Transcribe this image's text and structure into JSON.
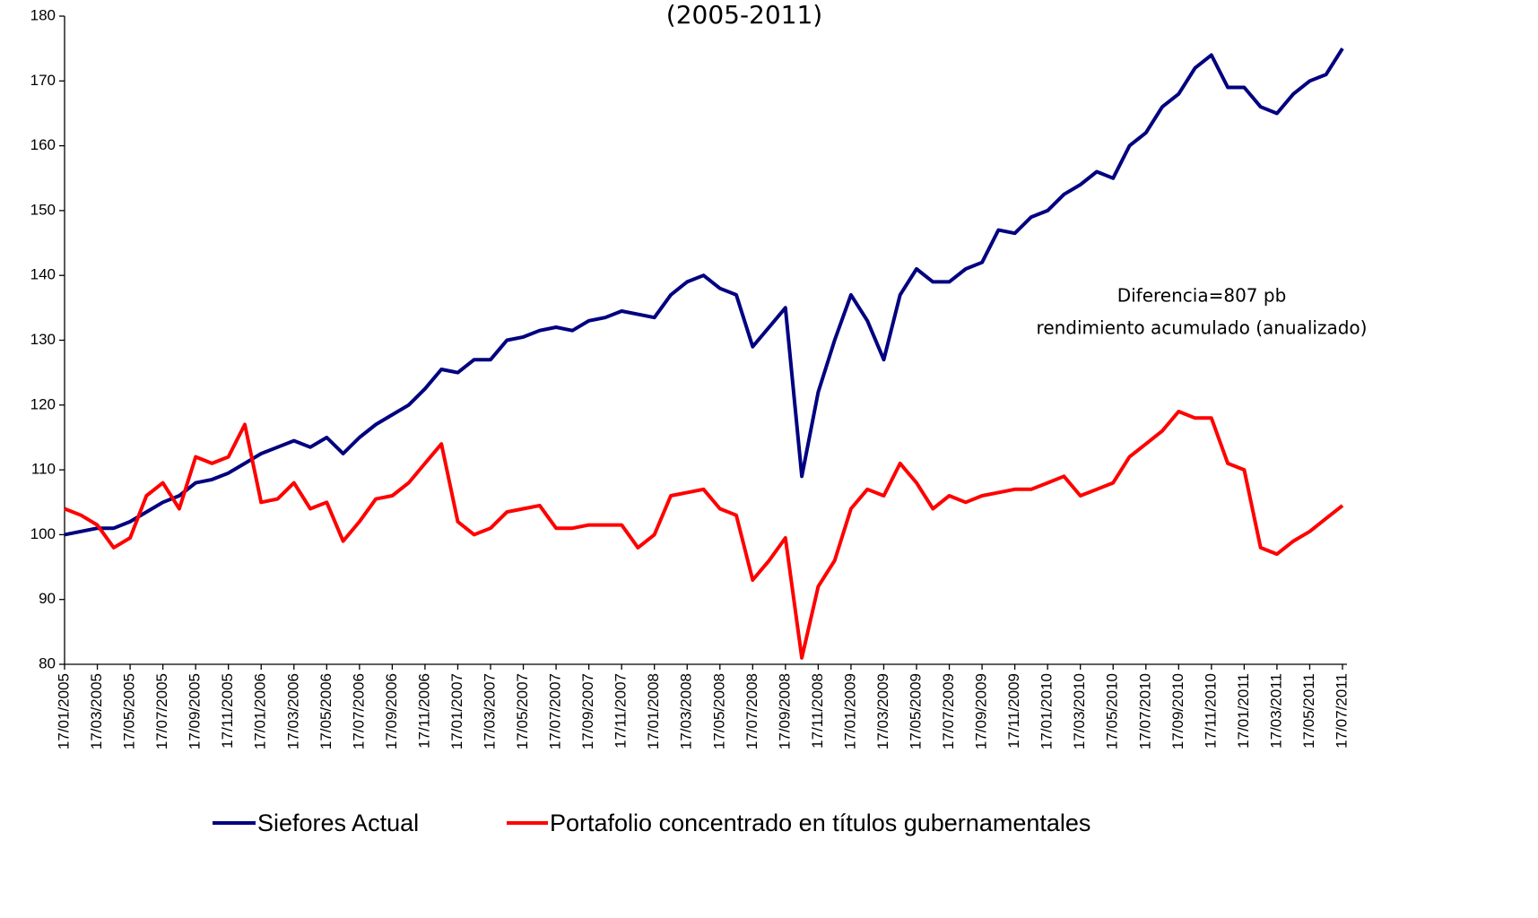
{
  "chart_data": {
    "type": "line",
    "title": "(2005-2011)",
    "annotations": [
      "Diferencia=807 pb",
      "rendimiento acumulado (anualizado)"
    ],
    "categories": [
      "17/01/2005",
      null,
      "17/03/2005",
      null,
      "17/05/2005",
      null,
      "17/07/2005",
      null,
      "17/09/2005",
      null,
      "17/11/2005",
      null,
      "17/01/2006",
      null,
      "17/03/2006",
      null,
      "17/05/2006",
      null,
      "17/07/2006",
      null,
      "17/09/2006",
      null,
      "17/11/2006",
      null,
      "17/01/2007",
      null,
      "17/03/2007",
      null,
      "17/05/2007",
      null,
      "17/07/2007",
      null,
      "17/09/2007",
      null,
      "17/11/2007",
      null,
      "17/01/2008",
      null,
      "17/03/2008",
      null,
      "17/05/2008",
      null,
      "17/07/2008",
      null,
      "17/09/2008",
      null,
      "17/11/2008",
      null,
      "17/01/2009",
      null,
      "17/03/2009",
      null,
      "17/05/2009",
      null,
      "17/07/2009",
      null,
      "17/09/2009",
      null,
      "17/11/2009",
      null,
      "17/01/2010",
      null,
      "17/03/2010",
      null,
      "17/05/2010",
      null,
      "17/07/2010",
      null,
      "17/09/2010",
      null,
      "17/11/2010",
      null,
      "17/01/2011",
      null,
      "17/03/2011",
      null,
      "17/05/2011",
      null,
      "17/07/2011"
    ],
    "series": [
      {
        "name": "Siefores Actual",
        "color": "#000080",
        "values": [
          100,
          100.5,
          101,
          101,
          102,
          103.5,
          105,
          106,
          108,
          108.5,
          109.5,
          111,
          112.5,
          113.5,
          114.5,
          113.5,
          115,
          112.5,
          115,
          117,
          118.5,
          120,
          122.5,
          125.5,
          125,
          127,
          127,
          130,
          130.5,
          131.5,
          132,
          131.5,
          133,
          133.5,
          134.5,
          134,
          133.5,
          137,
          139,
          140,
          138,
          137,
          129,
          132,
          135,
          109,
          122,
          130,
          137,
          133,
          127,
          137,
          141,
          139,
          139,
          141,
          142,
          147,
          146.5,
          149,
          150,
          152.5,
          154,
          156,
          155,
          160,
          162,
          166,
          168,
          172,
          174,
          169,
          169,
          166,
          165,
          168,
          170,
          171,
          175
        ]
      },
      {
        "name": "Portafolio concentrado en títulos gubernamentales",
        "color": "#ff0000",
        "values": [
          104,
          103,
          101.5,
          98,
          99.5,
          106,
          108,
          104,
          112,
          111,
          112,
          117,
          105,
          105.5,
          108,
          104,
          105,
          99,
          102,
          105.5,
          106,
          108,
          111,
          114,
          102,
          100,
          101,
          103.5,
          104,
          104.5,
          101,
          101,
          101.5,
          101.5,
          101.5,
          98,
          100,
          106,
          106.5,
          107,
          104,
          103,
          93,
          96,
          99.5,
          81,
          92,
          96,
          104,
          107,
          106,
          111,
          108,
          104,
          106,
          105,
          106,
          106.5,
          107,
          107,
          108,
          109,
          106,
          107,
          108,
          112,
          114,
          116,
          119,
          118,
          118,
          111,
          110,
          98,
          97,
          99,
          100.5,
          102.5,
          104.5
        ]
      }
    ],
    "ylim": [
      80,
      180
    ],
    "yticks": [
      80,
      90,
      100,
      110,
      120,
      130,
      140,
      150,
      160,
      170,
      180
    ],
    "grid": false
  }
}
